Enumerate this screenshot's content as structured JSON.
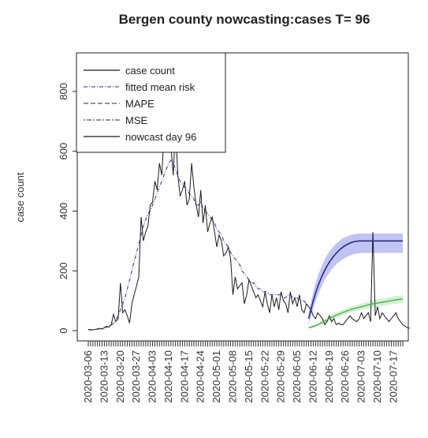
{
  "chart_data": {
    "type": "line",
    "title": "Bergen county nowcasting:cases T= 96",
    "xlabel": "",
    "ylabel": "case count",
    "ylim": [
      0,
      900
    ],
    "yticks": [
      0,
      200,
      400,
      600,
      800
    ],
    "xtick_labels": [
      "2020-03-06",
      "2020-03-13",
      "2020-03-20",
      "2020-03-27",
      "2020-04-03",
      "2020-04-10",
      "2020-04-17",
      "2020-04-24",
      "2020-05-01",
      "2020-05-08",
      "2020-05-15",
      "2020-05-22",
      "2020-05-29",
      "2020-06-05",
      "2020-06-12",
      "2020-06-19",
      "2020-06-26",
      "2020-07-03",
      "2020-07-10",
      "2020-07-17"
    ],
    "n_days": 138,
    "nowcast_day": 96,
    "legend": {
      "position": "top-left",
      "entries": [
        "case count",
        "fitted mean risk",
        "MAPE",
        "MSE",
        "nowcast day 96"
      ]
    },
    "colors": {
      "case_count": "#1a1a1a",
      "fitted_mean_risk": "#5050a0",
      "nowcast_line": "#2a2a80",
      "nowcast_band": "#aab0ee",
      "green_line": "#4cb04c",
      "green_band": "#c8eec8"
    },
    "series": [
      {
        "name": "case count",
        "values": [
          5,
          2,
          3,
          4,
          6,
          8,
          5,
          10,
          15,
          12,
          20,
          55,
          30,
          40,
          160,
          60,
          70,
          50,
          25,
          90,
          120,
          150,
          180,
          380,
          300,
          330,
          350,
          420,
          430,
          500,
          470,
          560,
          520,
          650,
          600,
          880,
          620,
          520,
          680,
          520,
          450,
          470,
          500,
          420,
          440,
          560,
          480,
          420,
          380,
          470,
          360,
          420,
          330,
          360,
          380,
          330,
          280,
          320,
          300,
          250,
          260,
          280,
          240,
          120,
          180,
          140,
          150,
          160,
          90,
          120,
          170,
          150,
          130,
          110,
          120,
          100,
          80,
          130,
          90,
          60,
          120,
          80,
          110,
          70,
          130,
          100,
          90,
          60,
          130,
          90,
          110,
          80,
          120,
          70,
          60,
          90,
          80,
          70,
          50,
          40,
          60,
          50,
          40,
          20,
          30,
          50,
          30,
          40,
          20,
          25,
          20,
          20,
          30,
          40,
          50,
          40,
          35,
          30,
          40,
          60,
          40,
          50,
          60,
          30,
          330,
          50,
          80,
          40,
          60,
          50,
          40,
          30,
          40,
          50,
          60,
          40,
          30,
          20,
          15,
          10,
          8
        ]
      },
      {
        "name": "fitted mean risk",
        "values": [
          3,
          3,
          3,
          4,
          5,
          6,
          8,
          10,
          12,
          15,
          18,
          25,
          35,
          50,
          70,
          90,
          110,
          140,
          170,
          200,
          230,
          260,
          290,
          320,
          350,
          370,
          390,
          400,
          420,
          440,
          460,
          480,
          500,
          520,
          540,
          560,
          570,
          560,
          540,
          520,
          500,
          490,
          480,
          470,
          460,
          450,
          440,
          420,
          420,
          430,
          410,
          400,
          390,
          380,
          370,
          360,
          340,
          330,
          320,
          300,
          290,
          280,
          260,
          250,
          240,
          230,
          220,
          200,
          190,
          180,
          170,
          160,
          160,
          150,
          140,
          140,
          130,
          130,
          130,
          120,
          120,
          120,
          120,
          120,
          120,
          110,
          110,
          120,
          120,
          110,
          110,
          110,
          100,
          100,
          100,
          90
        ]
      },
      {
        "name": "nowcast day 96",
        "start_day": 96,
        "values": [
          40,
          70,
          100,
          125,
          148,
          168,
          186,
          202,
          216,
          229,
          240,
          250,
          259,
          267,
          274,
          280,
          285,
          289,
          293,
          296,
          298,
          299,
          300,
          300,
          300,
          300,
          300,
          300,
          300,
          300,
          300,
          300,
          300,
          300,
          300,
          300,
          300,
          300,
          300,
          300,
          300,
          300
        ],
        "band_lower": [
          20,
          50,
          72,
          96,
          118,
          137,
          154,
          169,
          182,
          194,
          204,
          213,
          221,
          228,
          234,
          240,
          244,
          248,
          251,
          254,
          256,
          258,
          259,
          260,
          260,
          260,
          260,
          260,
          260,
          260,
          260,
          260,
          260,
          260,
          260,
          260,
          260,
          260,
          260,
          260,
          260,
          260
        ],
        "band_upper": [
          60,
          95,
          130,
          158,
          182,
          203,
          222,
          238,
          252,
          264,
          274,
          283,
          291,
          298,
          304,
          309,
          313,
          316,
          319,
          321,
          323,
          324,
          325,
          325,
          325,
          325,
          325,
          325,
          325,
          325,
          325,
          325,
          325,
          325,
          325,
          325,
          325,
          325,
          325,
          325,
          325,
          325
        ]
      },
      {
        "name": "green",
        "start_day": 96,
        "values": [
          10,
          12,
          14,
          17,
          20,
          24,
          28,
          32,
          36,
          40,
          44,
          48,
          52,
          55,
          58,
          61,
          64,
          67,
          70,
          72,
          74,
          76,
          78,
          80,
          82,
          84,
          86,
          88,
          90,
          91,
          92,
          94,
          95,
          96,
          98,
          99,
          100,
          102,
          103,
          104,
          105,
          106
        ],
        "band_lower": [
          6,
          8,
          10,
          12,
          15,
          18,
          22,
          25,
          29,
          32,
          36,
          39,
          43,
          46,
          49,
          52,
          55,
          58,
          60,
          62,
          64,
          66,
          68,
          70,
          71,
          73,
          75,
          77,
          78,
          79,
          80,
          82,
          83,
          84,
          86,
          87,
          88,
          89,
          90,
          91,
          92,
          93
        ],
        "band_upper": [
          14,
          16,
          18,
          22,
          25,
          30,
          34,
          39,
          43,
          48,
          52,
          57,
          61,
          64,
          67,
          70,
          73,
          76,
          80,
          82,
          84,
          86,
          88,
          90,
          93,
          95,
          97,
          99,
          102,
          103,
          104,
          106,
          107,
          108,
          110,
          111,
          112,
          115,
          116,
          117,
          118,
          119
        ]
      }
    ]
  }
}
